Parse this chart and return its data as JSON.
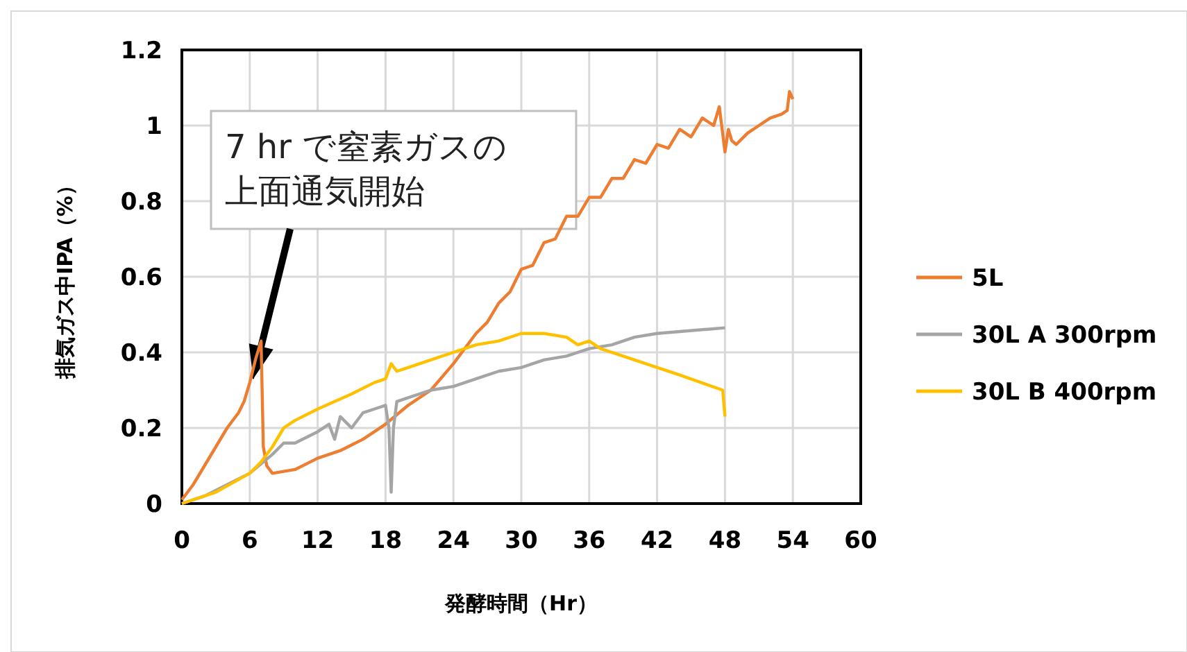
{
  "chart_data": {
    "type": "line",
    "xlabel": "発酵時間（Hr）",
    "ylabel": "排気ガス中IPA（%）",
    "xlim": [
      0,
      60
    ],
    "xticks": [
      0,
      6,
      12,
      18,
      24,
      30,
      36,
      42,
      48,
      54,
      60
    ],
    "ylim": [
      0,
      1.2
    ],
    "yticks": [
      0,
      0.2,
      0.4,
      0.6,
      0.8,
      1,
      1.2
    ],
    "grid": true,
    "legend": "right",
    "marker": "none",
    "line_style": "solid",
    "annotations": [
      {
        "text": "7 hr で窒素ガスの上面通気開始",
        "x": 6.3,
        "y": 0.33
      }
    ],
    "series": [
      {
        "name": "5L",
        "color": "#ed7d31",
        "x": [
          0,
          1,
          2,
          3,
          4,
          5,
          5.5,
          6,
          6.5,
          7,
          7.2,
          7.5,
          8,
          10,
          12,
          14,
          16,
          18,
          20,
          22,
          24,
          25,
          26,
          27,
          28,
          29,
          30,
          31,
          32,
          33,
          34,
          35,
          36,
          37,
          38,
          39,
          40,
          41,
          42,
          43,
          44,
          45,
          46,
          47,
          47.5,
          48,
          48.3,
          48.6,
          49,
          50,
          51,
          52,
          53,
          53.5,
          53.7,
          54
        ],
        "values": [
          0.01,
          0.05,
          0.1,
          0.15,
          0.2,
          0.24,
          0.27,
          0.32,
          0.38,
          0.43,
          0.15,
          0.1,
          0.08,
          0.09,
          0.12,
          0.14,
          0.17,
          0.21,
          0.26,
          0.3,
          0.37,
          0.41,
          0.45,
          0.48,
          0.53,
          0.56,
          0.62,
          0.63,
          0.69,
          0.7,
          0.76,
          0.76,
          0.81,
          0.81,
          0.86,
          0.86,
          0.91,
          0.9,
          0.95,
          0.94,
          0.99,
          0.97,
          1.02,
          1,
          1.05,
          0.93,
          0.99,
          0.96,
          0.95,
          0.98,
          1,
          1.02,
          1.03,
          1.04,
          1.09,
          1.07
        ]
      },
      {
        "name": "30L A 300rpm",
        "color": "#a5a5a5",
        "x": [
          0,
          2,
          4,
          6,
          8,
          9,
          10,
          12,
          13,
          13.5,
          14,
          15,
          16,
          17,
          18,
          18.3,
          18.5,
          18.7,
          19,
          20,
          22,
          24,
          26,
          28,
          30,
          32,
          34,
          36,
          38,
          40,
          42,
          44,
          46,
          48
        ],
        "values": [
          0,
          0.02,
          0.05,
          0.08,
          0.13,
          0.16,
          0.16,
          0.19,
          0.21,
          0.17,
          0.23,
          0.2,
          0.24,
          0.25,
          0.26,
          0.2,
          0.03,
          0.2,
          0.27,
          0.28,
          0.3,
          0.31,
          0.33,
          0.35,
          0.36,
          0.38,
          0.39,
          0.41,
          0.42,
          0.44,
          0.45,
          0.455,
          0.46,
          0.465
        ]
      },
      {
        "name": "30L B 400rpm",
        "color": "#ffc000",
        "x": [
          0,
          3,
          6,
          7,
          8,
          9,
          10,
          12,
          15,
          17,
          18,
          18.5,
          19,
          20,
          22,
          24,
          26,
          28,
          30,
          32,
          34,
          35,
          36,
          37,
          40,
          44,
          47.8,
          48
        ],
        "values": [
          0,
          0.03,
          0.08,
          0.11,
          0.15,
          0.2,
          0.22,
          0.25,
          0.29,
          0.32,
          0.33,
          0.37,
          0.35,
          0.36,
          0.38,
          0.4,
          0.42,
          0.43,
          0.45,
          0.45,
          0.44,
          0.42,
          0.43,
          0.41,
          0.38,
          0.34,
          0.3,
          0.23
        ]
      }
    ]
  }
}
